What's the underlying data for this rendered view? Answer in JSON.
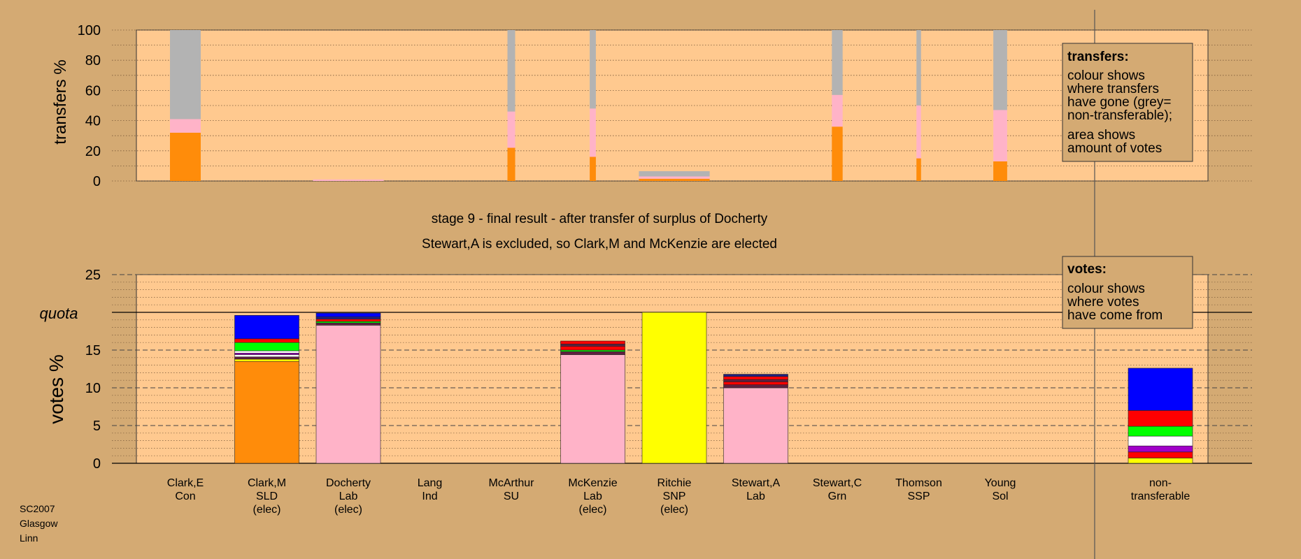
{
  "colors": {
    "page_bg": "#d4aa73",
    "plot_bg": "#ffc98f",
    "orange": "#ff8c0a",
    "pink": "#ffb3c8",
    "grey": "#b3b3b3",
    "blue": "#0000ff",
    "red": "#ff0000",
    "green": "#00ff00",
    "white": "#ffffff",
    "purple": "#a000c8",
    "yellow": "#ffff00",
    "dark": "#602040",
    "navy": "#202080"
  },
  "top_axis_label": "transfers %",
  "bottom_axis_label": "votes %",
  "quota_label": "quota",
  "title_line1": "stage 9 - final result - after transfer of surplus of Docherty",
  "title_line2": "Stewart,A is excluded, so Clark,M and McKenzie are elected",
  "transfers_legend": {
    "heading": "transfers:",
    "lines": [
      "colour shows",
      "where transfers",
      "have gone (grey=",
      "non-transferable);",
      "area shows",
      "amount of votes"
    ]
  },
  "votes_legend": {
    "heading": "votes:",
    "lines": [
      "colour shows",
      "where votes",
      "have come from"
    ]
  },
  "footer": [
    "SC2007",
    "Glasgow",
    "Linn"
  ],
  "chart_data": [
    {
      "type": "bar",
      "name": "transfers",
      "ylabel": "transfers %",
      "ylim": [
        0,
        100
      ],
      "yticks": [
        0,
        20,
        40,
        60,
        80,
        100
      ],
      "bars": [
        {
          "candidate": "Clark,E",
          "width": 1.0,
          "segments": [
            {
              "color": "orange",
              "value": 32
            },
            {
              "color": "pink",
              "value": 9
            },
            {
              "color": "grey",
              "value": 59
            }
          ]
        },
        {
          "candidate": "Docherty",
          "width": 2.3,
          "segments": [
            {
              "color": "pink",
              "value": 1
            }
          ]
        },
        {
          "candidate": "McArthur",
          "width": 0.25,
          "segments": [
            {
              "color": "orange",
              "value": 22
            },
            {
              "color": "pink",
              "value": 24
            },
            {
              "color": "grey",
              "value": 54
            }
          ]
        },
        {
          "candidate": "McKenzie",
          "width": 0.2,
          "segments": [
            {
              "color": "orange",
              "value": 16
            },
            {
              "color": "pink",
              "value": 32
            },
            {
              "color": "grey",
              "value": 52
            }
          ]
        },
        {
          "candidate": "Ritchie",
          "width": 2.3,
          "segments": [
            {
              "color": "orange",
              "value": 1.5
            },
            {
              "color": "pink",
              "value": 1.5
            },
            {
              "color": "grey",
              "value": 3.5
            }
          ]
        },
        {
          "candidate": "Stewart,C",
          "width": 0.35,
          "segments": [
            {
              "color": "orange",
              "value": 36
            },
            {
              "color": "pink",
              "value": 21
            },
            {
              "color": "grey",
              "value": 43
            }
          ]
        },
        {
          "candidate": "Thomson",
          "width": 0.15,
          "segments": [
            {
              "color": "orange",
              "value": 15
            },
            {
              "color": "pink",
              "value": 35
            },
            {
              "color": "grey",
              "value": 50
            }
          ]
        },
        {
          "candidate": "Young",
          "width": 0.45,
          "segments": [
            {
              "color": "orange",
              "value": 13
            },
            {
              "color": "pink",
              "value": 34
            },
            {
              "color": "grey",
              "value": 53
            }
          ]
        }
      ]
    },
    {
      "type": "bar",
      "name": "votes",
      "ylabel": "votes %",
      "ylim": [
        0,
        25
      ],
      "yticks": [
        0,
        5,
        10,
        15,
        20,
        25
      ],
      "quota": 20,
      "categories": [
        {
          "name": "Clark,E",
          "party": "Con",
          "status": ""
        },
        {
          "name": "Clark,M",
          "party": "SLD",
          "status": "(elec)"
        },
        {
          "name": "Docherty",
          "party": "Lab",
          "status": "(elec)"
        },
        {
          "name": "Lang",
          "party": "Ind",
          "status": ""
        },
        {
          "name": "McArthur",
          "party": "SU",
          "status": ""
        },
        {
          "name": "McKenzie",
          "party": "Lab",
          "status": "(elec)"
        },
        {
          "name": "Ritchie",
          "party": "SNP",
          "status": "(elec)"
        },
        {
          "name": "Stewart,A",
          "party": "Lab",
          "status": ""
        },
        {
          "name": "Stewart,C",
          "party": "Grn",
          "status": ""
        },
        {
          "name": "Thomson",
          "party": "SSP",
          "status": ""
        },
        {
          "name": "Young",
          "party": "Sol",
          "status": ""
        },
        {
          "name": "non-",
          "party": "transferable",
          "status": ""
        }
      ],
      "stacks": [
        [],
        [
          {
            "color": "orange",
            "value": 13.5
          },
          {
            "color": "yellow",
            "value": 0.3
          },
          {
            "color": "dark",
            "value": 0.3
          },
          {
            "color": "white",
            "value": 0.3
          },
          {
            "color": "purple",
            "value": 0.2
          },
          {
            "color": "white",
            "value": 0.3
          },
          {
            "color": "green",
            "value": 1.1
          },
          {
            "color": "red",
            "value": 0.5
          },
          {
            "color": "blue",
            "value": 3.1
          }
        ],
        [
          {
            "color": "pink",
            "value": 18.3
          },
          {
            "color": "dark",
            "value": 0.3
          },
          {
            "color": "green",
            "value": 0.2
          },
          {
            "color": "red",
            "value": 0.3
          },
          {
            "color": "navy",
            "value": 0.3
          },
          {
            "color": "blue",
            "value": 0.5
          }
        ],
        [],
        [],
        [
          {
            "color": "pink",
            "value": 14.4
          },
          {
            "color": "dark",
            "value": 0.4
          },
          {
            "color": "green",
            "value": 0.2
          },
          {
            "color": "red",
            "value": 0.5
          },
          {
            "color": "dark",
            "value": 0.3
          },
          {
            "color": "red",
            "value": 0.4
          }
        ],
        [
          {
            "color": "yellow",
            "value": 20
          }
        ],
        [
          {
            "color": "pink",
            "value": 10
          },
          {
            "color": "dark",
            "value": 0.4
          },
          {
            "color": "red",
            "value": 0.4
          },
          {
            "color": "dark",
            "value": 0.3
          },
          {
            "color": "red",
            "value": 0.4
          },
          {
            "color": "navy",
            "value": 0.3
          }
        ],
        [],
        [],
        [],
        [
          {
            "color": "yellow",
            "value": 0.7
          },
          {
            "color": "red",
            "value": 0.8
          },
          {
            "color": "purple",
            "value": 0.8
          },
          {
            "color": "white",
            "value": 1.3
          },
          {
            "color": "green",
            "value": 1.3
          },
          {
            "color": "red",
            "value": 2.1
          },
          {
            "color": "blue",
            "value": 5.6
          }
        ]
      ]
    }
  ]
}
